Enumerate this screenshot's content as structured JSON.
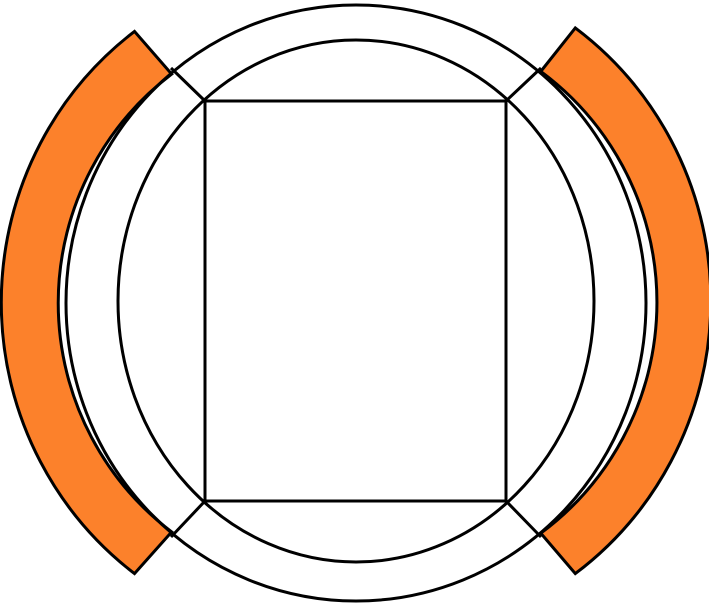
{
  "figure": {
    "colors": {
      "background": "#ffffff",
      "stroke": "#000000",
      "band_fill": "#fc812b"
    },
    "shapes": [
      "outer-circle",
      "inner-circle",
      "inscribed-rectangle",
      "corner-connector-lines",
      "left-orange-band",
      "right-orange-band"
    ]
  }
}
